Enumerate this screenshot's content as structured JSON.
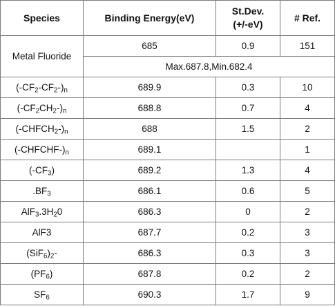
{
  "headers": {
    "species": "Species",
    "binding_energy": "Binding Energy(eV)",
    "stdev_line1": "St.Dev.",
    "stdev_line2": "(+/-eV)",
    "refs": "# Ref."
  },
  "metal_fluoride": {
    "species": "Metal Fluoride",
    "binding_energy": "685",
    "stdev": "0.9",
    "refs": "151",
    "range": "Max.687.8,Min.682.4"
  },
  "rows": [
    {
      "species_parts": [
        "(-CF",
        "2",
        "-CF",
        "2",
        "-)",
        "n"
      ],
      "binding_energy": "689.9",
      "stdev": "0.3",
      "refs": "10"
    },
    {
      "species_parts": [
        "(-CF",
        "2",
        "CH",
        "2",
        "-)",
        "n"
      ],
      "binding_energy": "688.8",
      "stdev": "0.7",
      "refs": "4"
    },
    {
      "species_parts": [
        "(-CHFCH",
        "2",
        "-)",
        "n"
      ],
      "binding_energy": "688",
      "stdev": "1.5",
      "refs": "2"
    },
    {
      "species_parts": [
        "(-CHFCHF-)",
        "n"
      ],
      "binding_energy": "689.1",
      "stdev": "",
      "refs": "1"
    },
    {
      "species_parts": [
        "(-CF",
        "3",
        ")"
      ],
      "binding_energy": "689.2",
      "stdev": "1.3",
      "refs": "4"
    },
    {
      "species_parts": [
        ".BF",
        "3"
      ],
      "binding_energy": "686.1",
      "stdev": "0.6",
      "refs": "5"
    },
    {
      "species_parts": [
        "AlF",
        "3",
        ".3H",
        "2",
        "0"
      ],
      "binding_energy": "686.3",
      "stdev": "0",
      "refs": "2"
    },
    {
      "species_parts": [
        "AlF3"
      ],
      "binding_energy": "687.7",
      "stdev": "0.2",
      "refs": "3"
    },
    {
      "species_parts": [
        "(SiF",
        "6",
        ")",
        "2",
        "-"
      ],
      "binding_energy": "686.3",
      "stdev": "0.3",
      "refs": "3"
    },
    {
      "species_parts": [
        "(PF",
        "6",
        ")"
      ],
      "binding_energy": "687.8",
      "stdev": "0.2",
      "refs": "2"
    },
    {
      "species_parts": [
        "SF",
        "6"
      ],
      "binding_energy": "690.3",
      "stdev": "1.7",
      "refs": "9"
    }
  ]
}
